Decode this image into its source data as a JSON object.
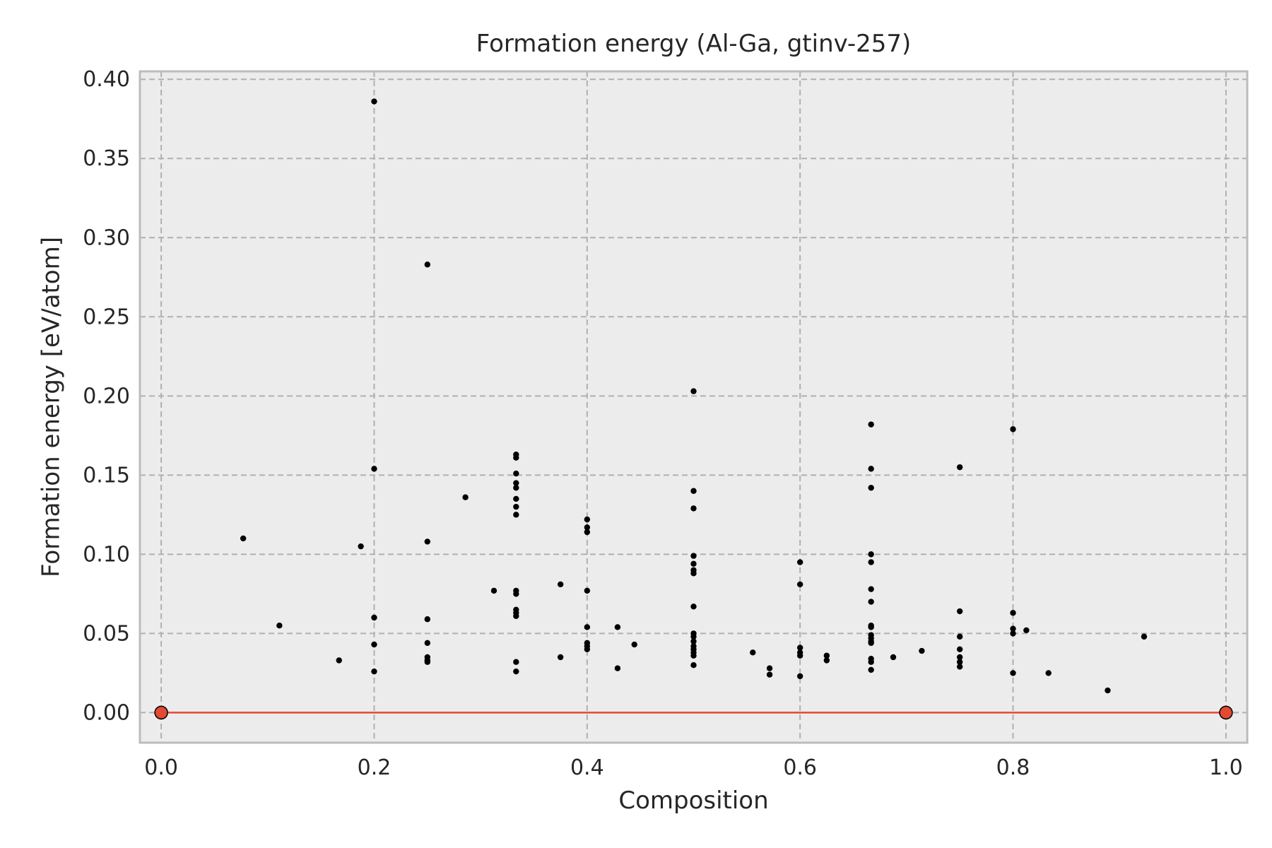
{
  "chart_data": {
    "type": "scatter",
    "title": "Formation energy (Al-Ga, gtinv-257)",
    "xlabel": "Composition",
    "ylabel": "Formation energy [eV/atom]",
    "xlim": [
      -0.02,
      1.02
    ],
    "ylim": [
      -0.019,
      0.405
    ],
    "xticks": [
      0.0,
      0.2,
      0.4,
      0.6,
      0.8,
      1.0
    ],
    "xtick_labels": [
      "0.0",
      "0.2",
      "0.4",
      "0.6",
      "0.8",
      "1.0"
    ],
    "yticks": [
      0.0,
      0.05,
      0.1,
      0.15,
      0.2,
      0.25,
      0.3,
      0.35,
      0.4
    ],
    "ytick_labels": [
      "0.00",
      "0.05",
      "0.10",
      "0.15",
      "0.20",
      "0.25",
      "0.30",
      "0.35",
      "0.40"
    ],
    "grid": true,
    "colors": {
      "background": "#ececec",
      "grid": "#b0b0b0",
      "points": "#000000",
      "hull": "#e24a33",
      "frame": "#bcbcbc"
    },
    "series": [
      {
        "marker": "dot",
        "x": [
          0.077,
          0.111,
          0.167,
          0.1875,
          0.2,
          0.2,
          0.2,
          0.2,
          0.2,
          0.25,
          0.25,
          0.25,
          0.25,
          0.25,
          0.25,
          0.25,
          0.2857,
          0.3125,
          0.3333,
          0.3333,
          0.3333,
          0.3333,
          0.3333,
          0.3333,
          0.3333,
          0.3333,
          0.3333,
          0.3333,
          0.3333,
          0.3333,
          0.3333,
          0.3333,
          0.3333,
          0.375,
          0.375,
          0.4,
          0.4,
          0.4,
          0.4,
          0.4,
          0.4,
          0.4,
          0.4,
          0.4286,
          0.4286,
          0.4444,
          0.5,
          0.5,
          0.5,
          0.5,
          0.5,
          0.5,
          0.5,
          0.5,
          0.5,
          0.5,
          0.5,
          0.5,
          0.5,
          0.5,
          0.5,
          0.5,
          0.5556,
          0.5714,
          0.5714,
          0.6,
          0.6,
          0.6,
          0.6,
          0.6,
          0.6,
          0.625,
          0.625,
          0.6667,
          0.6667,
          0.6667,
          0.6667,
          0.6667,
          0.6667,
          0.6667,
          0.6667,
          0.6667,
          0.6667,
          0.6667,
          0.6667,
          0.6667,
          0.6667,
          0.6667,
          0.6667,
          0.6875,
          0.7143,
          0.75,
          0.75,
          0.75,
          0.75,
          0.75,
          0.75,
          0.75,
          0.8,
          0.8,
          0.8,
          0.8,
          0.8,
          0.8125,
          0.8333,
          0.8889,
          0.9231
        ],
        "y": [
          0.11,
          0.055,
          0.033,
          0.105,
          0.386,
          0.154,
          0.06,
          0.043,
          0.026,
          0.283,
          0.108,
          0.059,
          0.044,
          0.035,
          0.033,
          0.032,
          0.136,
          0.077,
          0.163,
          0.161,
          0.151,
          0.145,
          0.142,
          0.135,
          0.13,
          0.125,
          0.077,
          0.075,
          0.065,
          0.063,
          0.061,
          0.032,
          0.026,
          0.081,
          0.035,
          0.122,
          0.117,
          0.114,
          0.077,
          0.054,
          0.044,
          0.042,
          0.04,
          0.054,
          0.028,
          0.043,
          0.203,
          0.14,
          0.129,
          0.099,
          0.094,
          0.09,
          0.088,
          0.067,
          0.05,
          0.048,
          0.045,
          0.042,
          0.04,
          0.038,
          0.036,
          0.03,
          0.038,
          0.028,
          0.024,
          0.095,
          0.081,
          0.041,
          0.038,
          0.036,
          0.023,
          0.036,
          0.033,
          0.182,
          0.154,
          0.142,
          0.1,
          0.095,
          0.078,
          0.07,
          0.055,
          0.054,
          0.049,
          0.047,
          0.045,
          0.044,
          0.034,
          0.032,
          0.027,
          0.035,
          0.039,
          0.155,
          0.064,
          0.048,
          0.04,
          0.035,
          0.032,
          0.029,
          0.179,
          0.063,
          0.053,
          0.05,
          0.025,
          0.052,
          0.025,
          0.014,
          0.048
        ]
      },
      {
        "marker": "circle",
        "line": true,
        "x": [
          0.0,
          1.0
        ],
        "y": [
          0.0,
          0.0
        ]
      }
    ]
  }
}
